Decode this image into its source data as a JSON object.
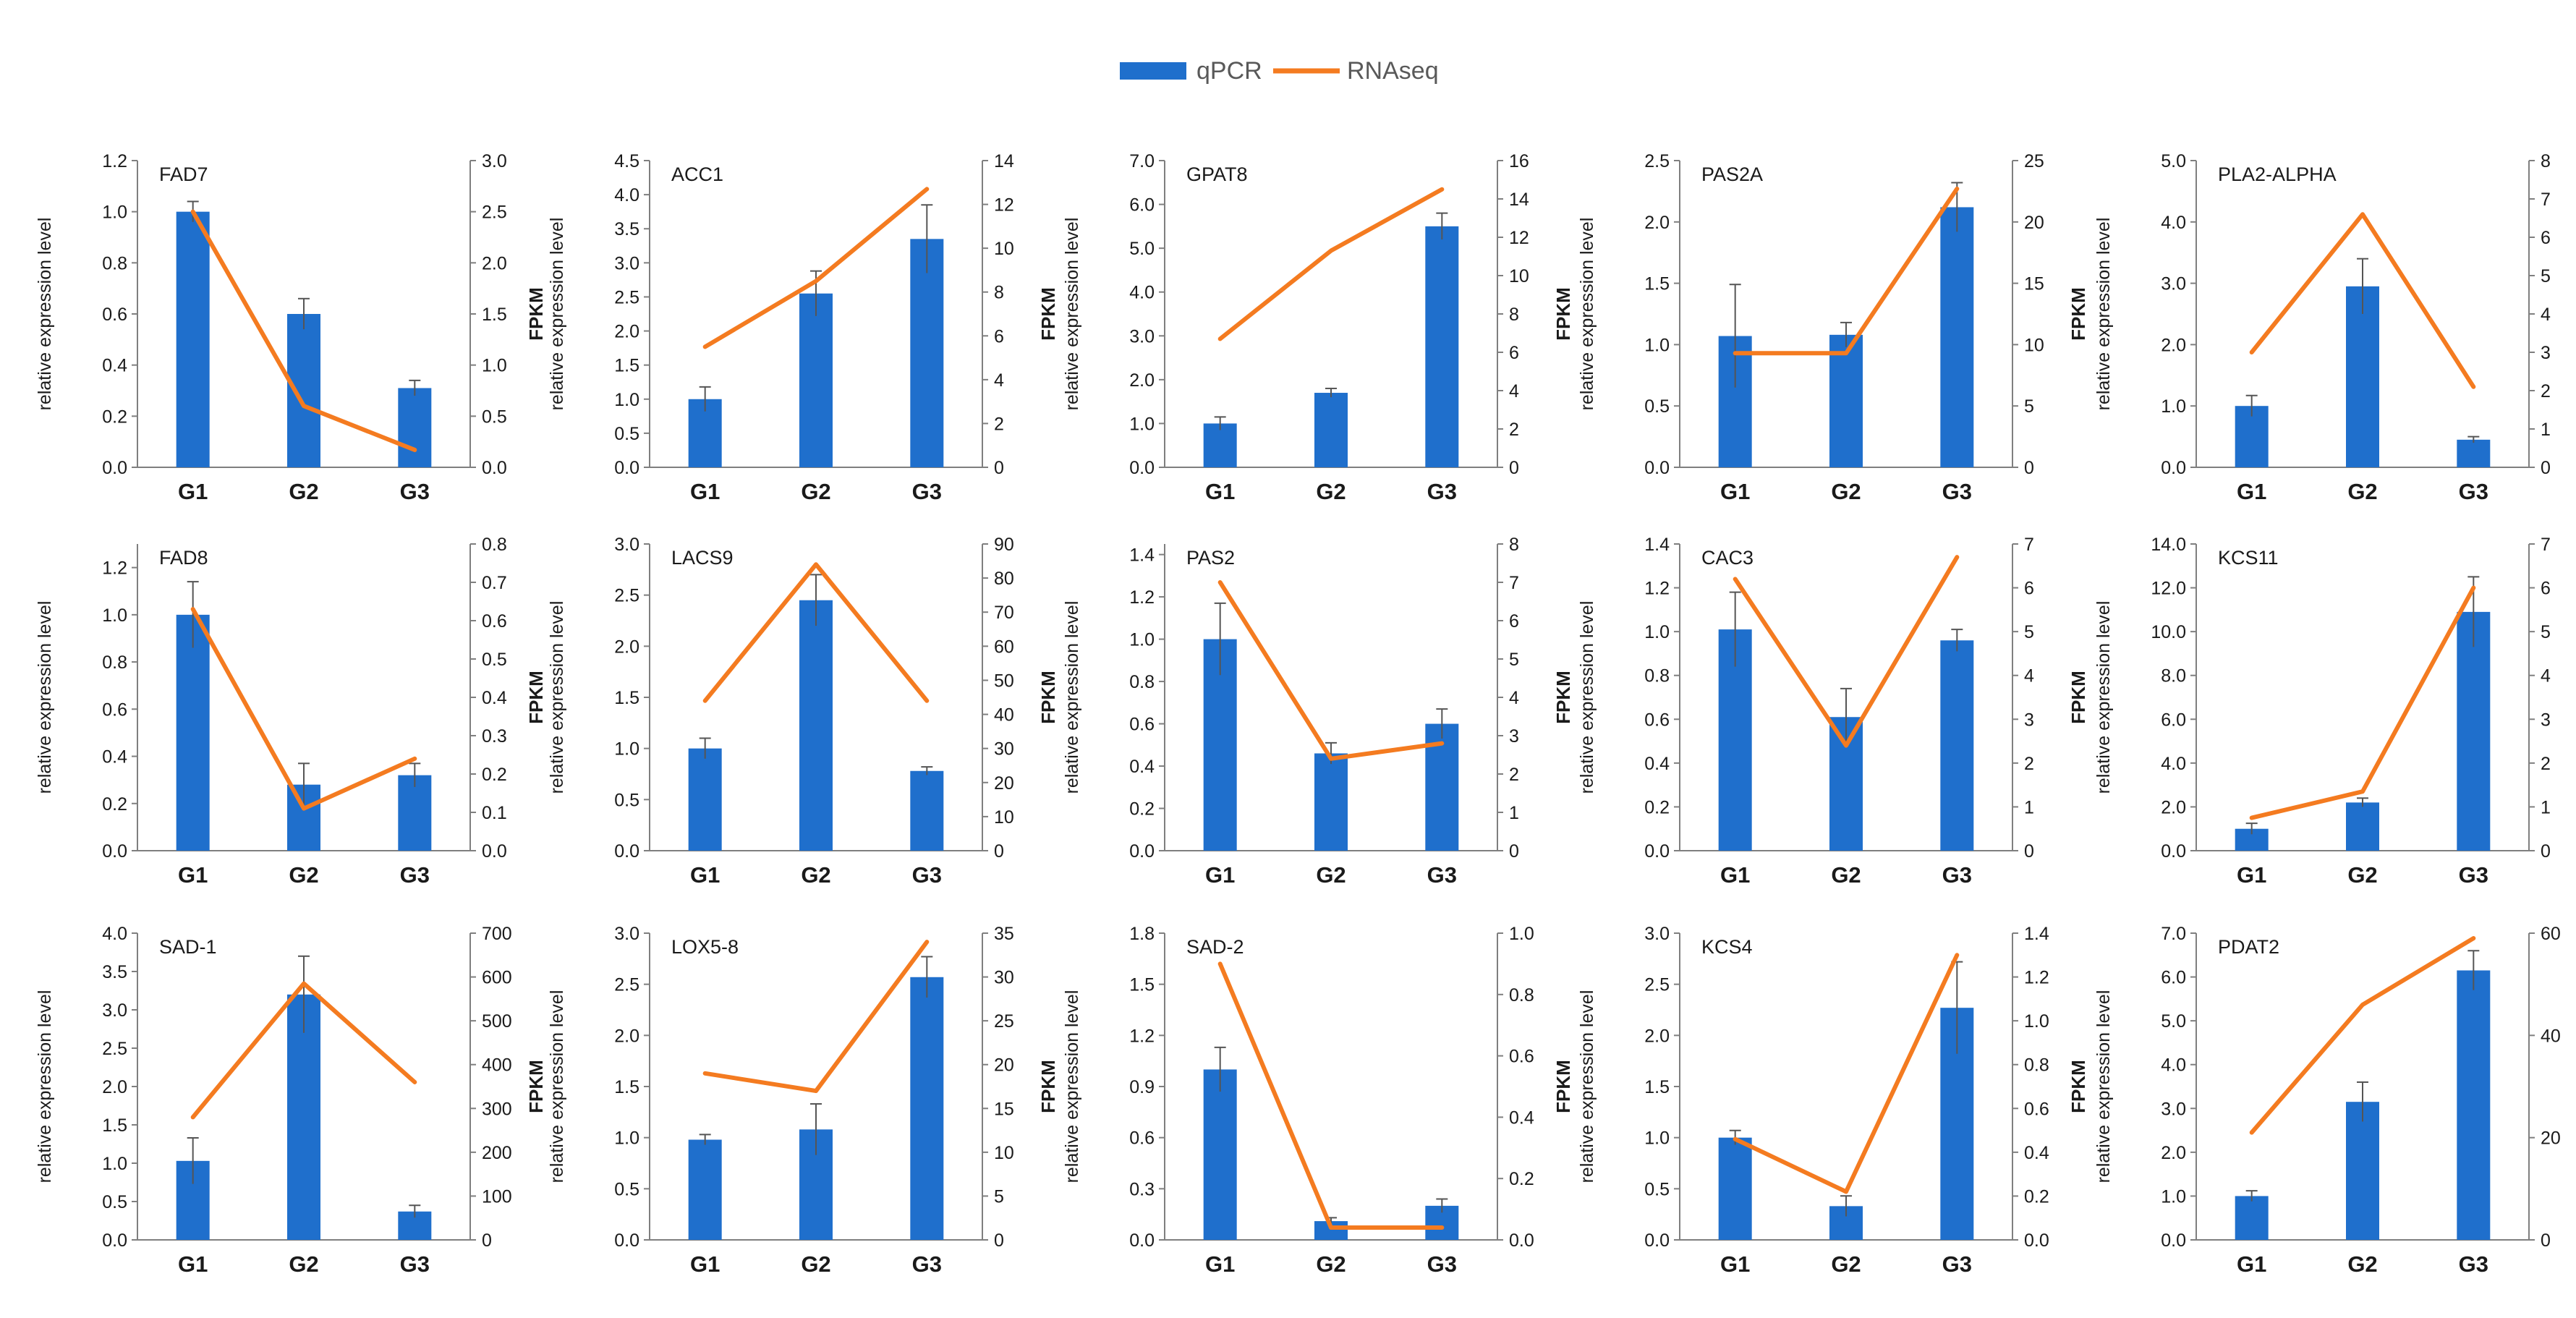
{
  "legend": {
    "qpcr_label": "qPCR",
    "rnaseq_label": "RNAseq"
  },
  "colors": {
    "bar": "#1f6fcc",
    "line": "#f47b20",
    "axis": "#7f7f7f",
    "text": "#1a1a1a"
  },
  "axis_labels": {
    "left": "relative expression level",
    "right": "FPKM"
  },
  "chart_data": [
    {
      "type": "bar+line",
      "title": "FAD7",
      "categories": [
        "G1",
        "G2",
        "G3"
      ],
      "bar_values": [
        1.0,
        0.6,
        0.31
      ],
      "bar_errors": [
        0.04,
        0.06,
        0.03
      ],
      "line_values": [
        2.5,
        0.6,
        0.17
      ],
      "ylim_left": [
        0,
        1.2
      ],
      "yticks_left": [
        "0.0",
        "0.2",
        "0.4",
        "0.6",
        "0.8",
        "1.0",
        "1.2"
      ],
      "ylim_right": [
        0,
        3.0
      ],
      "yticks_right": [
        "0.0",
        "0.5",
        "1.0",
        "1.5",
        "2.0",
        "2.5",
        "3.0"
      ]
    },
    {
      "type": "bar+line",
      "title": "ACC1",
      "categories": [
        "G1",
        "G2",
        "G3"
      ],
      "bar_values": [
        1.0,
        2.55,
        3.35
      ],
      "bar_errors": [
        0.18,
        0.33,
        0.5
      ],
      "line_values": [
        5.5,
        8.5,
        12.7
      ],
      "ylim_left": [
        0,
        4.5
      ],
      "yticks_left": [
        "0.0",
        "0.5",
        "1.0",
        "1.5",
        "2.0",
        "2.5",
        "3.0",
        "3.5",
        "4.0",
        "4.5"
      ],
      "ylim_right": [
        0,
        14
      ],
      "yticks_right": [
        "0",
        "2",
        "4",
        "6",
        "8",
        "10",
        "12",
        "14"
      ]
    },
    {
      "type": "bar+line",
      "title": "GPAT8",
      "categories": [
        "G1",
        "G2",
        "G3"
      ],
      "bar_values": [
        1.0,
        1.7,
        5.5
      ],
      "bar_errors": [
        0.15,
        0.1,
        0.3
      ],
      "line_values": [
        6.7,
        11.3,
        14.5
      ],
      "ylim_left": [
        0,
        7.0
      ],
      "yticks_left": [
        "0.0",
        "1.0",
        "2.0",
        "3.0",
        "4.0",
        "5.0",
        "6.0",
        "7.0"
      ],
      "ylim_right": [
        0,
        16
      ],
      "yticks_right": [
        "0",
        "2",
        "4",
        "6",
        "8",
        "10",
        "12",
        "14",
        "16"
      ]
    },
    {
      "type": "bar+line",
      "title": "PAS2A",
      "categories": [
        "G1",
        "G2",
        "G3"
      ],
      "bar_values": [
        1.07,
        1.08,
        2.12
      ],
      "bar_errors": [
        0.42,
        0.1,
        0.2
      ],
      "line_values": [
        9.3,
        9.3,
        22.7
      ],
      "ylim_left": [
        0,
        2.5
      ],
      "yticks_left": [
        "0.0",
        "0.5",
        "1.0",
        "1.5",
        "2.0",
        "2.5"
      ],
      "ylim_right": [
        0,
        25
      ],
      "yticks_right": [
        "0",
        "5",
        "10",
        "15",
        "20",
        "25"
      ]
    },
    {
      "type": "bar+line",
      "title": "PLA2-ALPHA",
      "categories": [
        "G1",
        "G2",
        "G3"
      ],
      "bar_values": [
        1.0,
        2.95,
        0.45
      ],
      "bar_errors": [
        0.17,
        0.45,
        0.05
      ],
      "line_values": [
        3.0,
        6.6,
        2.1
      ],
      "ylim_left": [
        0,
        5.0
      ],
      "yticks_left": [
        "0.0",
        "1.0",
        "2.0",
        "3.0",
        "4.0",
        "5.0"
      ],
      "ylim_right": [
        0,
        8
      ],
      "yticks_right": [
        "0",
        "1",
        "2",
        "3",
        "4",
        "5",
        "6",
        "7",
        "8"
      ]
    },
    {
      "type": "bar+line",
      "title": "FAD8",
      "categories": [
        "G1",
        "G2",
        "G3"
      ],
      "bar_values": [
        1.0,
        0.28,
        0.32
      ],
      "bar_errors": [
        0.14,
        0.09,
        0.05
      ],
      "line_values": [
        0.63,
        0.11,
        0.24
      ],
      "ylim_left": [
        0,
        1.3
      ],
      "yticks_left": [
        "0.0",
        "0.2",
        "0.4",
        "0.6",
        "0.8",
        "1.0",
        "1.2"
      ],
      "ylim_right": [
        0,
        0.8
      ],
      "yticks_right": [
        "0.0",
        "0.1",
        "0.2",
        "0.3",
        "0.4",
        "0.5",
        "0.6",
        "0.7",
        "0.8"
      ]
    },
    {
      "type": "bar+line",
      "title": "LACS9",
      "categories": [
        "G1",
        "G2",
        "G3"
      ],
      "bar_values": [
        1.0,
        2.45,
        0.78
      ],
      "bar_errors": [
        0.1,
        0.25,
        0.04
      ],
      "line_values": [
        44.0,
        84.0,
        44.0
      ],
      "ylim_left": [
        0,
        3.0
      ],
      "yticks_left": [
        "0.0",
        "0.5",
        "1.0",
        "1.5",
        "2.0",
        "2.5",
        "3.0"
      ],
      "ylim_right": [
        0,
        90
      ],
      "yticks_right": [
        "0",
        "10",
        "20",
        "30",
        "40",
        "50",
        "60",
        "70",
        "80",
        "90"
      ]
    },
    {
      "type": "bar+line",
      "title": "PAS2",
      "categories": [
        "G1",
        "G2",
        "G3"
      ],
      "bar_values": [
        1.0,
        0.46,
        0.6
      ],
      "bar_errors": [
        0.17,
        0.05,
        0.07
      ],
      "line_values": [
        7.0,
        2.4,
        2.8
      ],
      "ylim_left": [
        0,
        1.45
      ],
      "yticks_left": [
        "0.0",
        "0.2",
        "0.4",
        "0.6",
        "0.8",
        "1.0",
        "1.2",
        "1.4"
      ],
      "ylim_right": [
        0,
        8
      ],
      "yticks_right": [
        "0",
        "1",
        "2",
        "3",
        "4",
        "5",
        "6",
        "7",
        "8"
      ]
    },
    {
      "type": "bar+line",
      "title": "CAC3",
      "categories": [
        "G1",
        "G2",
        "G3"
      ],
      "bar_values": [
        1.01,
        0.61,
        0.96
      ],
      "bar_errors": [
        0.17,
        0.13,
        0.05
      ],
      "line_values": [
        6.2,
        2.4,
        6.7
      ],
      "ylim_left": [
        0,
        1.4
      ],
      "yticks_left": [
        "0.0",
        "0.2",
        "0.4",
        "0.6",
        "0.8",
        "1.0",
        "1.2",
        "1.4"
      ],
      "ylim_right": [
        0,
        7
      ],
      "yticks_right": [
        "0",
        "1",
        "2",
        "3",
        "4",
        "5",
        "6",
        "7"
      ]
    },
    {
      "type": "bar+line",
      "title": "KCS11",
      "categories": [
        "G1",
        "G2",
        "G3"
      ],
      "bar_values": [
        1.0,
        2.2,
        10.9
      ],
      "bar_errors": [
        0.25,
        0.2,
        1.6
      ],
      "line_values": [
        0.75,
        1.35,
        6.0
      ],
      "ylim_left": [
        0,
        14.0
      ],
      "yticks_left": [
        "0.0",
        "2.0",
        "4.0",
        "6.0",
        "8.0",
        "10.0",
        "12.0",
        "14.0"
      ],
      "ylim_right": [
        0,
        7
      ],
      "yticks_right": [
        "0",
        "1",
        "2",
        "3",
        "4",
        "5",
        "6",
        "7"
      ]
    },
    {
      "type": "bar+line",
      "title": "SAD-1",
      "categories": [
        "G1",
        "G2",
        "G3"
      ],
      "bar_values": [
        1.03,
        3.2,
        0.37
      ],
      "bar_errors": [
        0.3,
        0.5,
        0.08
      ],
      "line_values": [
        280,
        585,
        360
      ],
      "ylim_left": [
        0,
        4.0
      ],
      "yticks_left": [
        "0.0",
        "0.5",
        "1.0",
        "1.5",
        "2.0",
        "2.5",
        "3.0",
        "3.5",
        "4.0"
      ],
      "ylim_right": [
        0,
        700
      ],
      "yticks_right": [
        "0",
        "100",
        "200",
        "300",
        "400",
        "500",
        "600",
        "700"
      ]
    },
    {
      "type": "bar+line",
      "title": "LOX5-8",
      "categories": [
        "G1",
        "G2",
        "G3"
      ],
      "bar_values": [
        0.98,
        1.08,
        2.57
      ],
      "bar_errors": [
        0.05,
        0.25,
        0.2
      ],
      "line_values": [
        19.0,
        17.0,
        34.0
      ],
      "ylim_left": [
        0,
        3.0
      ],
      "yticks_left": [
        "0.0",
        "0.5",
        "1.0",
        "1.5",
        "2.0",
        "2.5",
        "3.0"
      ],
      "ylim_right": [
        0,
        35
      ],
      "yticks_right": [
        "0",
        "5",
        "10",
        "15",
        "20",
        "25",
        "30",
        "35"
      ]
    },
    {
      "type": "bar+line",
      "title": "SAD-2",
      "categories": [
        "G1",
        "G2",
        "G3"
      ],
      "bar_values": [
        1.0,
        0.11,
        0.2
      ],
      "bar_errors": [
        0.13,
        0.02,
        0.04
      ],
      "line_values": [
        0.9,
        0.04,
        0.04
      ],
      "ylim_left": [
        0,
        1.8
      ],
      "yticks_left": [
        "0.0",
        "0.3",
        "0.6",
        "0.9",
        "1.2",
        "1.5",
        "1.8"
      ],
      "ylim_right": [
        0,
        1.0
      ],
      "yticks_right": [
        "0.0",
        "0.2",
        "0.4",
        "0.6",
        "0.8",
        "1.0"
      ]
    },
    {
      "type": "bar+line",
      "title": "KCS4",
      "categories": [
        "G1",
        "G2",
        "G3"
      ],
      "bar_values": [
        1.0,
        0.33,
        2.27
      ],
      "bar_errors": [
        0.07,
        0.1,
        0.45
      ],
      "line_values": [
        0.46,
        0.22,
        1.3
      ],
      "ylim_left": [
        0,
        3.0
      ],
      "yticks_left": [
        "0.0",
        "0.5",
        "1.0",
        "1.5",
        "2.0",
        "2.5",
        "3.0"
      ],
      "ylim_right": [
        0,
        1.4
      ],
      "yticks_right": [
        "0.0",
        "0.2",
        "0.4",
        "0.6",
        "0.8",
        "1.0",
        "1.2",
        "1.4"
      ]
    },
    {
      "type": "bar+line",
      "title": "PDAT2",
      "categories": [
        "G1",
        "G2",
        "G3"
      ],
      "bar_values": [
        1.0,
        3.15,
        6.15
      ],
      "bar_errors": [
        0.12,
        0.45,
        0.45
      ],
      "line_values": [
        21.0,
        46.0,
        59.0
      ],
      "ylim_left": [
        0,
        7.0
      ],
      "yticks_left": [
        "0.0",
        "1.0",
        "2.0",
        "3.0",
        "4.0",
        "5.0",
        "6.0",
        "7.0"
      ],
      "ylim_right": [
        0,
        60
      ],
      "yticks_right": [
        "0",
        "20",
        "40",
        "60"
      ]
    }
  ]
}
